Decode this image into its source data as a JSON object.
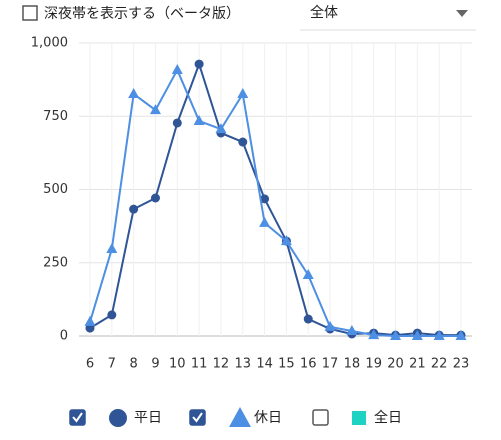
{
  "top_bar": {
    "checkbox_label": "深夜帯を表示する（ベータ版）",
    "checked": false,
    "dropdown": "全体"
  },
  "chart_data": {
    "type": "line",
    "categories": [
      "6",
      "7",
      "8",
      "9",
      "10",
      "11",
      "12",
      "13",
      "14",
      "15",
      "16",
      "17",
      "18",
      "19",
      "20",
      "21",
      "22",
      "23"
    ],
    "series": [
      {
        "name": "平日",
        "color": "#2f5596",
        "marker": "circle",
        "checked": true,
        "values": [
          27,
          72,
          433,
          471,
          727,
          928,
          693,
          662,
          468,
          324,
          58,
          24,
          7,
          10,
          3,
          10,
          3,
          3
        ]
      },
      {
        "name": "休日",
        "color": "#4d8fe3",
        "marker": "triangle",
        "checked": true,
        "values": [
          48,
          297,
          826,
          771,
          908,
          734,
          706,
          826,
          386,
          324,
          208,
          31,
          17,
          3,
          0,
          0,
          0,
          0
        ]
      }
    ],
    "ylim": [
      0,
      1000
    ],
    "yticks": [
      0,
      250,
      500,
      750,
      {
        "value": 1000,
        "label": "1,000"
      }
    ],
    "grid": true
  },
  "toggle_all": {
    "name": "全日",
    "color": "#1fd3c3",
    "checked": false
  }
}
